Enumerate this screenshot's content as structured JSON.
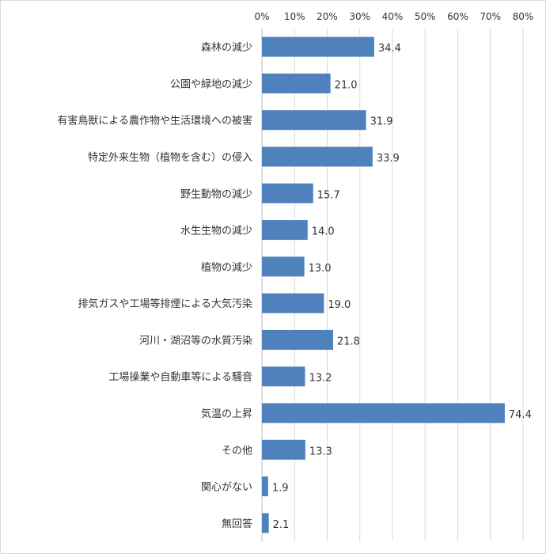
{
  "chart_data": {
    "type": "bar",
    "orientation": "horizontal",
    "categories": [
      "森林の減少",
      "公園や緑地の減少",
      "有害鳥獣による農作物や生活環境への被害",
      "特定外来生物（植物を含む）の侵入",
      "野生動物の減少",
      "水生生物の減少",
      "植物の減少",
      "排気ガスや工場等排煙による大気汚染",
      "河川・湖沼等の水質汚染",
      "工場操業や自動車等による騒音",
      "気温の上昇",
      "その他",
      "関心がない",
      "無回答"
    ],
    "values": [
      34.4,
      21.0,
      31.9,
      33.9,
      15.7,
      14.0,
      13.0,
      19.0,
      21.8,
      13.2,
      74.4,
      13.3,
      1.9,
      2.1
    ],
    "value_labels": [
      "34.4",
      "21.0",
      "31.9",
      "33.9",
      "15.7",
      "14.0",
      "13.0",
      "19.0",
      "21.8",
      "13.2",
      "74.4",
      "13.3",
      "1.9",
      "2.1"
    ],
    "x_ticks": [
      "0%",
      "10%",
      "20%",
      "30%",
      "40%",
      "50%",
      "60%",
      "70%",
      "80%"
    ],
    "xlim": [
      0,
      80
    ],
    "x_axis_position": "top",
    "grid": true,
    "bar_color": "#4f81bd",
    "gridline_color": "#d9d9d9"
  }
}
